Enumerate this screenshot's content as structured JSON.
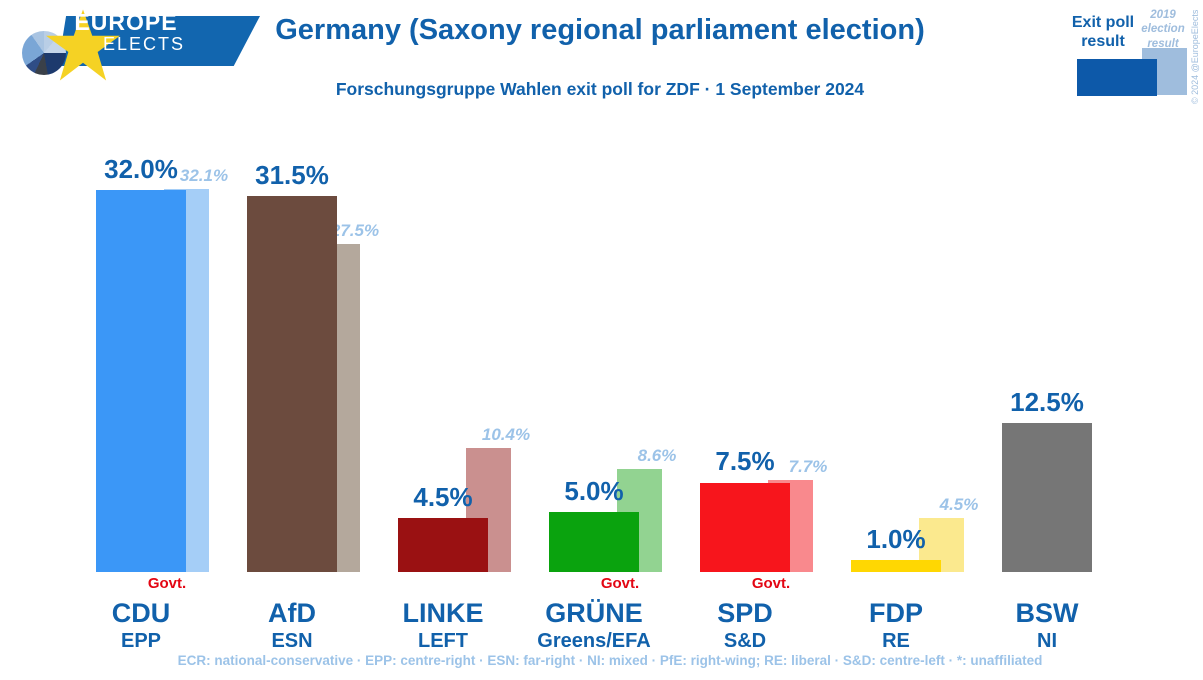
{
  "logo": {
    "line1": "EUROPE",
    "line2": "ELECTS",
    "banner_color": "#1266af",
    "star_color": "#f5d224"
  },
  "header": {
    "title": "Germany (Saxony regional parliament election)",
    "subtitle": "Forschungsgruppe Wahlen exit poll for ZDF · 1 September 2024"
  },
  "legend": {
    "exit_poll_label": "Exit poll result",
    "prev_result_label": "2019 election result",
    "exit_color": "#0d59a9",
    "prev_color": "#9fbddd"
  },
  "watermark": "© 2024 @EuropeElects",
  "footnote": "ECR: national-conservative · EPP: centre-right · ESN: far-right · NI: mixed · PfE: right-wing; RE: liberal · S&D: centre-left · *: unaffiliated",
  "chart_data": {
    "type": "bar",
    "title": "Germany (Saxony regional parliament election)",
    "unit": "%",
    "categories": [
      "CDU",
      "AfD",
      "LINKE",
      "GRÜNE",
      "SPD",
      "FDP",
      "BSW"
    ],
    "eu_groups": [
      "EPP",
      "ESN",
      "LEFT",
      "Greens/EFA",
      "S&D",
      "RE",
      "NI"
    ],
    "series": [
      {
        "name": "Exit poll result",
        "values": [
          32.0,
          31.5,
          4.5,
          5.0,
          7.5,
          1.0,
          12.5
        ]
      },
      {
        "name": "2019 election result",
        "values": [
          32.1,
          27.5,
          10.4,
          8.6,
          7.7,
          4.5,
          null
        ]
      }
    ],
    "in_government": [
      true,
      false,
      false,
      true,
      true,
      false,
      false
    ],
    "govt_label": "Govt.",
    "bar_colors": [
      "#3b97f7",
      "#6c4b3e",
      "#9a1112",
      "#0aa30e",
      "#f7151c",
      "#ffd702",
      "#767676"
    ],
    "prev_bar_colors": [
      "#a5cef7",
      "#b4a89c",
      "#ca908f",
      "#92d391",
      "#f9898d",
      "#fbe98e",
      null
    ],
    "ylim": [
      0,
      34
    ],
    "grid": false,
    "legend_position": "top-right",
    "value_label_color": "#1161ab",
    "prev_label_color": "#9cc3e8"
  }
}
